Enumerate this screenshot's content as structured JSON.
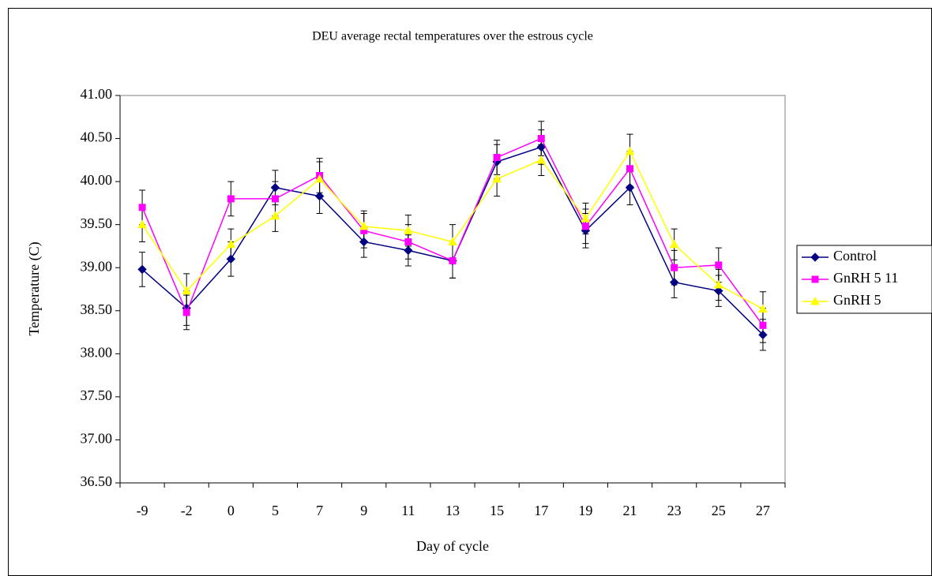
{
  "chart_data": {
    "type": "line",
    "title": "DEU average rectal temperatures over the estrous cycle",
    "x_label": "Day of cycle",
    "y_label": "Temperature (C)",
    "categories": [
      "-9",
      "-2",
      "0",
      "5",
      "7",
      "9",
      "11",
      "13",
      "15",
      "17",
      "19",
      "21",
      "23",
      "25",
      "27"
    ],
    "ylim": [
      36.5,
      41
    ],
    "yticks": [
      {
        "value": 36.5,
        "label": "36.50"
      },
      {
        "value": 37,
        "label": "37.00"
      },
      {
        "value": 37.5,
        "label": "37.50"
      },
      {
        "value": 38,
        "label": "38.00"
      },
      {
        "value": 38.5,
        "label": "38.50"
      },
      {
        "value": 39,
        "label": "39.00"
      },
      {
        "value": 39.5,
        "label": "39.50"
      },
      {
        "value": 40,
        "label": "40.00"
      },
      {
        "value": 40.5,
        "label": "40.50"
      },
      {
        "value": 41,
        "label": "41.00"
      }
    ],
    "legend": "right",
    "series": [
      {
        "name": "Control",
        "color": "#000080",
        "marker": "diamond",
        "values": [
          38.98,
          38.53,
          39.1,
          39.93,
          39.83,
          39.3,
          39.2,
          39.08,
          40.23,
          40.4,
          39.43,
          39.93,
          38.83,
          38.73,
          38.22
        ],
        "errors": [
          0.2,
          0.2,
          0.2,
          0.2,
          0.2,
          0.18,
          0.18,
          0.2,
          0.2,
          0.2,
          0.2,
          0.2,
          0.18,
          0.18,
          0.18
        ]
      },
      {
        "name": "GnRH 5 11",
        "color": "#FF00FF",
        "marker": "square",
        "values": [
          39.7,
          38.48,
          39.8,
          39.8,
          40.07,
          39.43,
          39.3,
          39.08,
          40.28,
          40.5,
          39.48,
          40.15,
          39.0,
          39.03,
          38.33
        ],
        "errors": [
          0.2,
          0.2,
          0.2,
          0.2,
          0.2,
          0.2,
          0.2,
          0.2,
          0.2,
          0.2,
          0.2,
          0.2,
          0.2,
          0.2,
          0.2
        ]
      },
      {
        "name": "GnRH 5",
        "color": "#FFFF00",
        "marker": "triangle",
        "values": [
          39.5,
          38.73,
          39.27,
          39.6,
          40.03,
          39.48,
          39.43,
          39.3,
          40.03,
          40.25,
          39.57,
          40.35,
          39.27,
          38.8,
          38.52
        ],
        "errors": [
          0.2,
          0.2,
          0.18,
          0.18,
          0.2,
          0.18,
          0.18,
          0.2,
          0.2,
          0.18,
          0.18,
          0.2,
          0.18,
          0.18,
          0.2
        ]
      }
    ]
  }
}
